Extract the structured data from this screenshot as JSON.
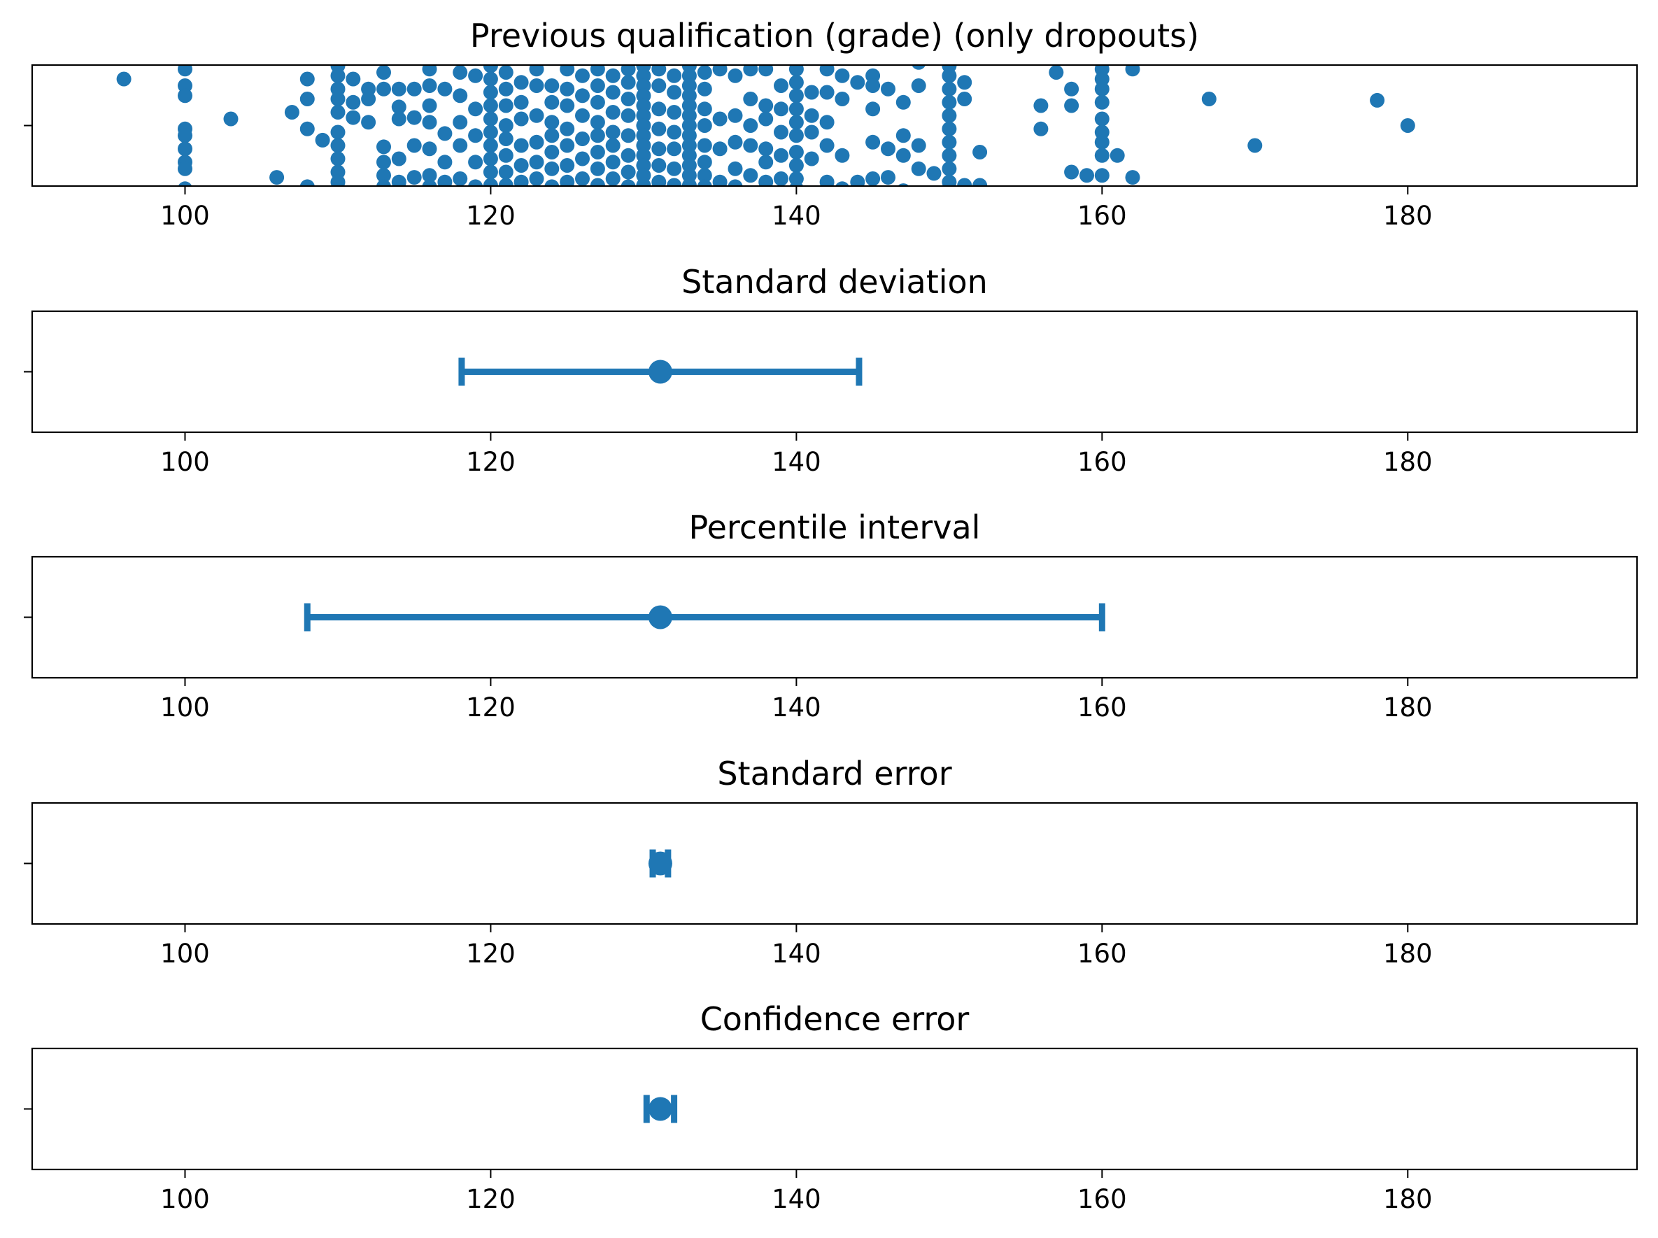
{
  "colors": {
    "marker": "#1f77b4",
    "axes": "#000000",
    "background": "#ffffff"
  },
  "chart_data": [
    {
      "type": "scatter",
      "title": "Previous qualification (grade) (only dropouts)",
      "xlabel": "",
      "ylabel": "",
      "xlim": [
        90,
        195
      ],
      "xticks": [
        100,
        120,
        140,
        160,
        180
      ],
      "yticks": [
        ""
      ],
      "grid": false,
      "points": [
        [
          96,
          -0.7
        ],
        [
          100,
          -0.85
        ],
        [
          100,
          -0.6
        ],
        [
          100,
          -0.45
        ],
        [
          100,
          0.05
        ],
        [
          100,
          0.15
        ],
        [
          100,
          0.35
        ],
        [
          100,
          0.55
        ],
        [
          100,
          0.65
        ],
        [
          100,
          0.95
        ],
        [
          103,
          -0.1
        ],
        [
          106,
          0.78
        ],
        [
          107,
          -0.2
        ],
        [
          108,
          -0.4
        ],
        [
          108,
          -0.7
        ],
        [
          108,
          0.05
        ],
        [
          108,
          0.92
        ],
        [
          109,
          0.22
        ],
        [
          110,
          -0.9
        ],
        [
          110,
          -0.75
        ],
        [
          110,
          -0.55
        ],
        [
          110,
          -0.4
        ],
        [
          110,
          -0.2
        ],
        [
          110,
          0.1
        ],
        [
          110,
          0.3
        ],
        [
          110,
          0.5
        ],
        [
          110,
          0.7
        ],
        [
          110,
          0.85
        ],
        [
          111,
          -0.7
        ],
        [
          111,
          -0.35
        ],
        [
          111,
          -0.12
        ],
        [
          112,
          -0.55
        ],
        [
          112,
          -0.4
        ],
        [
          112,
          -0.05
        ],
        [
          113,
          -0.8
        ],
        [
          113,
          -0.55
        ],
        [
          113,
          0.32
        ],
        [
          113,
          0.55
        ],
        [
          113,
          0.75
        ],
        [
          113,
          0.92
        ],
        [
          114,
          -0.55
        ],
        [
          114,
          -0.28
        ],
        [
          114,
          -0.1
        ],
        [
          114,
          0.5
        ],
        [
          114,
          0.85
        ],
        [
          115,
          -0.55
        ],
        [
          115,
          -0.12
        ],
        [
          115,
          0.3
        ],
        [
          115,
          0.78
        ],
        [
          116,
          -0.85
        ],
        [
          116,
          -0.6
        ],
        [
          116,
          -0.3
        ],
        [
          116,
          -0.05
        ],
        [
          116,
          0.35
        ],
        [
          116,
          0.75
        ],
        [
          116,
          0.92
        ],
        [
          117,
          -0.55
        ],
        [
          117,
          0.12
        ],
        [
          117,
          0.55
        ],
        [
          117,
          0.85
        ],
        [
          118,
          -0.8
        ],
        [
          118,
          -0.45
        ],
        [
          118,
          -0.05
        ],
        [
          118,
          0.3
        ],
        [
          118,
          0.8
        ],
        [
          119,
          -0.75
        ],
        [
          119,
          -0.25
        ],
        [
          119,
          0.15
        ],
        [
          119,
          0.55
        ],
        [
          119,
          0.92
        ],
        [
          120,
          -0.9
        ],
        [
          120,
          -0.7
        ],
        [
          120,
          -0.5
        ],
        [
          120,
          -0.3
        ],
        [
          120,
          -0.1
        ],
        [
          120,
          0.1
        ],
        [
          120,
          0.3
        ],
        [
          120,
          0.5
        ],
        [
          120,
          0.7
        ],
        [
          120,
          0.9
        ],
        [
          121,
          -0.8
        ],
        [
          121,
          -0.55
        ],
        [
          121,
          -0.3
        ],
        [
          121,
          0.0
        ],
        [
          121,
          0.2
        ],
        [
          121,
          0.45
        ],
        [
          121,
          0.7
        ],
        [
          121,
          0.9
        ],
        [
          122,
          -0.65
        ],
        [
          122,
          -0.35
        ],
        [
          122,
          -0.1
        ],
        [
          122,
          0.3
        ],
        [
          122,
          0.6
        ],
        [
          122,
          0.85
        ],
        [
          123,
          -0.85
        ],
        [
          123,
          -0.6
        ],
        [
          123,
          -0.15
        ],
        [
          123,
          0.25
        ],
        [
          123,
          0.55
        ],
        [
          123,
          0.8
        ],
        [
          124,
          -0.6
        ],
        [
          124,
          -0.35
        ],
        [
          124,
          -0.05
        ],
        [
          124,
          0.15
        ],
        [
          124,
          0.4
        ],
        [
          124,
          0.65
        ],
        [
          124,
          0.92
        ],
        [
          125,
          -0.85
        ],
        [
          125,
          -0.55
        ],
        [
          125,
          -0.3
        ],
        [
          125,
          0.05
        ],
        [
          125,
          0.3
        ],
        [
          125,
          0.6
        ],
        [
          125,
          0.85
        ],
        [
          126,
          -0.75
        ],
        [
          126,
          -0.45
        ],
        [
          126,
          -0.15
        ],
        [
          126,
          0.2
        ],
        [
          126,
          0.5
        ],
        [
          126,
          0.8
        ],
        [
          127,
          -0.85
        ],
        [
          127,
          -0.6
        ],
        [
          127,
          -0.35
        ],
        [
          127,
          -0.05
        ],
        [
          127,
          0.15
        ],
        [
          127,
          0.4
        ],
        [
          127,
          0.65
        ],
        [
          127,
          0.9
        ],
        [
          128,
          -0.75
        ],
        [
          128,
          -0.5
        ],
        [
          128,
          -0.2
        ],
        [
          128,
          0.1
        ],
        [
          128,
          0.3
        ],
        [
          128,
          0.55
        ],
        [
          128,
          0.8
        ],
        [
          129,
          -0.85
        ],
        [
          129,
          -0.65
        ],
        [
          129,
          -0.4
        ],
        [
          129,
          -0.15
        ],
        [
          129,
          0.15
        ],
        [
          129,
          0.45
        ],
        [
          129,
          0.7
        ],
        [
          129,
          0.92
        ],
        [
          130,
          -0.9
        ],
        [
          130,
          -0.75
        ],
        [
          130,
          -0.6
        ],
        [
          130,
          -0.45
        ],
        [
          130,
          -0.3
        ],
        [
          130,
          -0.15
        ],
        [
          130,
          0.0
        ],
        [
          130,
          0.15
        ],
        [
          130,
          0.3
        ],
        [
          130,
          0.45
        ],
        [
          130,
          0.6
        ],
        [
          130,
          0.75
        ],
        [
          130,
          0.9
        ],
        [
          131,
          -0.85
        ],
        [
          131,
          -0.6
        ],
        [
          131,
          -0.25
        ],
        [
          131,
          0.05
        ],
        [
          131,
          0.35
        ],
        [
          131,
          0.6
        ],
        [
          131,
          0.85
        ],
        [
          132,
          -0.75
        ],
        [
          132,
          -0.5
        ],
        [
          132,
          -0.2
        ],
        [
          132,
          0.1
        ],
        [
          132,
          0.35
        ],
        [
          132,
          0.65
        ],
        [
          132,
          0.9
        ],
        [
          133,
          -0.9
        ],
        [
          133,
          -0.75
        ],
        [
          133,
          -0.6
        ],
        [
          133,
          -0.45
        ],
        [
          133,
          -0.3
        ],
        [
          133,
          -0.15
        ],
        [
          133,
          0.0
        ],
        [
          133,
          0.15
        ],
        [
          133,
          0.3
        ],
        [
          133,
          0.45
        ],
        [
          133,
          0.6
        ],
        [
          133,
          0.75
        ],
        [
          133,
          0.9
        ],
        [
          134,
          -0.8
        ],
        [
          134,
          -0.55
        ],
        [
          134,
          -0.25
        ],
        [
          134,
          0.0
        ],
        [
          134,
          0.3
        ],
        [
          134,
          0.55
        ],
        [
          134,
          0.75
        ],
        [
          134,
          0.92
        ],
        [
          135,
          -0.85
        ],
        [
          135,
          -0.1
        ],
        [
          135,
          0.35
        ],
        [
          135,
          0.85
        ],
        [
          136,
          -0.75
        ],
        [
          136,
          -0.15
        ],
        [
          136,
          0.25
        ],
        [
          136,
          0.65
        ],
        [
          136,
          0.92
        ],
        [
          137,
          -0.85
        ],
        [
          137,
          -0.4
        ],
        [
          137,
          0.0
        ],
        [
          137,
          0.3
        ],
        [
          137,
          0.75
        ],
        [
          138,
          -0.85
        ],
        [
          138,
          -0.3
        ],
        [
          138,
          -0.1
        ],
        [
          138,
          0.35
        ],
        [
          138,
          0.55
        ],
        [
          138,
          0.85
        ],
        [
          139,
          -0.6
        ],
        [
          139,
          -0.25
        ],
        [
          139,
          0.1
        ],
        [
          139,
          0.45
        ],
        [
          139,
          0.8
        ],
        [
          140,
          -0.85
        ],
        [
          140,
          -0.65
        ],
        [
          140,
          -0.45
        ],
        [
          140,
          -0.25
        ],
        [
          140,
          -0.05
        ],
        [
          140,
          0.15
        ],
        [
          140,
          0.4
        ],
        [
          140,
          0.6
        ],
        [
          140,
          0.8
        ],
        [
          140,
          0.95
        ],
        [
          141,
          -0.5
        ],
        [
          141,
          -0.15
        ],
        [
          141,
          0.1
        ],
        [
          141,
          0.5
        ],
        [
          142,
          -0.85
        ],
        [
          142,
          -0.5
        ],
        [
          142,
          -0.05
        ],
        [
          142,
          0.3
        ],
        [
          142,
          0.85
        ],
        [
          143,
          -0.75
        ],
        [
          143,
          -0.4
        ],
        [
          143,
          0.45
        ],
        [
          143,
          0.95
        ],
        [
          144,
          -0.65
        ],
        [
          144,
          0.85
        ],
        [
          145,
          -0.75
        ],
        [
          145,
          -0.6
        ],
        [
          145,
          -0.25
        ],
        [
          145,
          0.25
        ],
        [
          145,
          0.8
        ],
        [
          146,
          -0.55
        ],
        [
          146,
          0.35
        ],
        [
          146,
          0.78
        ],
        [
          147,
          -0.35
        ],
        [
          147,
          0.15
        ],
        [
          147,
          0.45
        ],
        [
          147,
          0.98
        ],
        [
          148,
          -0.95
        ],
        [
          148,
          -0.6
        ],
        [
          148,
          0.3
        ],
        [
          148,
          0.65
        ],
        [
          149,
          0.72
        ],
        [
          150,
          -0.9
        ],
        [
          150,
          -0.75
        ],
        [
          150,
          -0.55
        ],
        [
          150,
          -0.35
        ],
        [
          150,
          -0.15
        ],
        [
          150,
          0.05
        ],
        [
          150,
          0.25
        ],
        [
          150,
          0.45
        ],
        [
          150,
          0.65
        ],
        [
          150,
          0.85
        ],
        [
          151,
          -0.65
        ],
        [
          151,
          -0.4
        ],
        [
          151,
          0.9
        ],
        [
          152,
          0.4
        ],
        [
          152,
          0.9
        ],
        [
          156,
          -0.3
        ],
        [
          156,
          0.05
        ],
        [
          157,
          -0.8
        ],
        [
          158,
          -0.55
        ],
        [
          158,
          -0.3
        ],
        [
          158,
          0.7
        ],
        [
          159,
          0.75
        ],
        [
          160,
          -0.85
        ],
        [
          160,
          -0.7
        ],
        [
          160,
          -0.55
        ],
        [
          160,
          -0.35
        ],
        [
          160,
          -0.1
        ],
        [
          160,
          0.1
        ],
        [
          160,
          0.25
        ],
        [
          160,
          0.45
        ],
        [
          160,
          0.75
        ],
        [
          161,
          0.45
        ],
        [
          162,
          -0.85
        ],
        [
          162,
          0.78
        ],
        [
          167,
          -0.4
        ],
        [
          170,
          0.3
        ],
        [
          178,
          -0.38
        ],
        [
          180,
          0.0
        ]
      ]
    },
    {
      "type": "errorbar",
      "title": "Standard deviation",
      "xlim": [
        90,
        195
      ],
      "xticks": [
        100,
        120,
        140,
        160,
        180
      ],
      "yticks": [
        ""
      ],
      "center": 131.1,
      "lower": 118.1,
      "upper": 144.1
    },
    {
      "type": "errorbar",
      "title": "Percentile interval",
      "xlim": [
        90,
        195
      ],
      "xticks": [
        100,
        120,
        140,
        160,
        180
      ],
      "yticks": [
        ""
      ],
      "center": 131.1,
      "lower": 108.0,
      "upper": 160.0
    },
    {
      "type": "errorbar",
      "title": "Standard error",
      "xlim": [
        90,
        195
      ],
      "xticks": [
        100,
        120,
        140,
        160,
        180
      ],
      "yticks": [
        ""
      ],
      "center": 131.1,
      "lower": 130.6,
      "upper": 131.6
    },
    {
      "type": "errorbar",
      "title": "Confidence error",
      "xlim": [
        90,
        195
      ],
      "xticks": [
        100,
        120,
        140,
        160,
        180
      ],
      "yticks": [
        ""
      ],
      "center": 131.1,
      "lower": 130.2,
      "upper": 132.0
    }
  ]
}
